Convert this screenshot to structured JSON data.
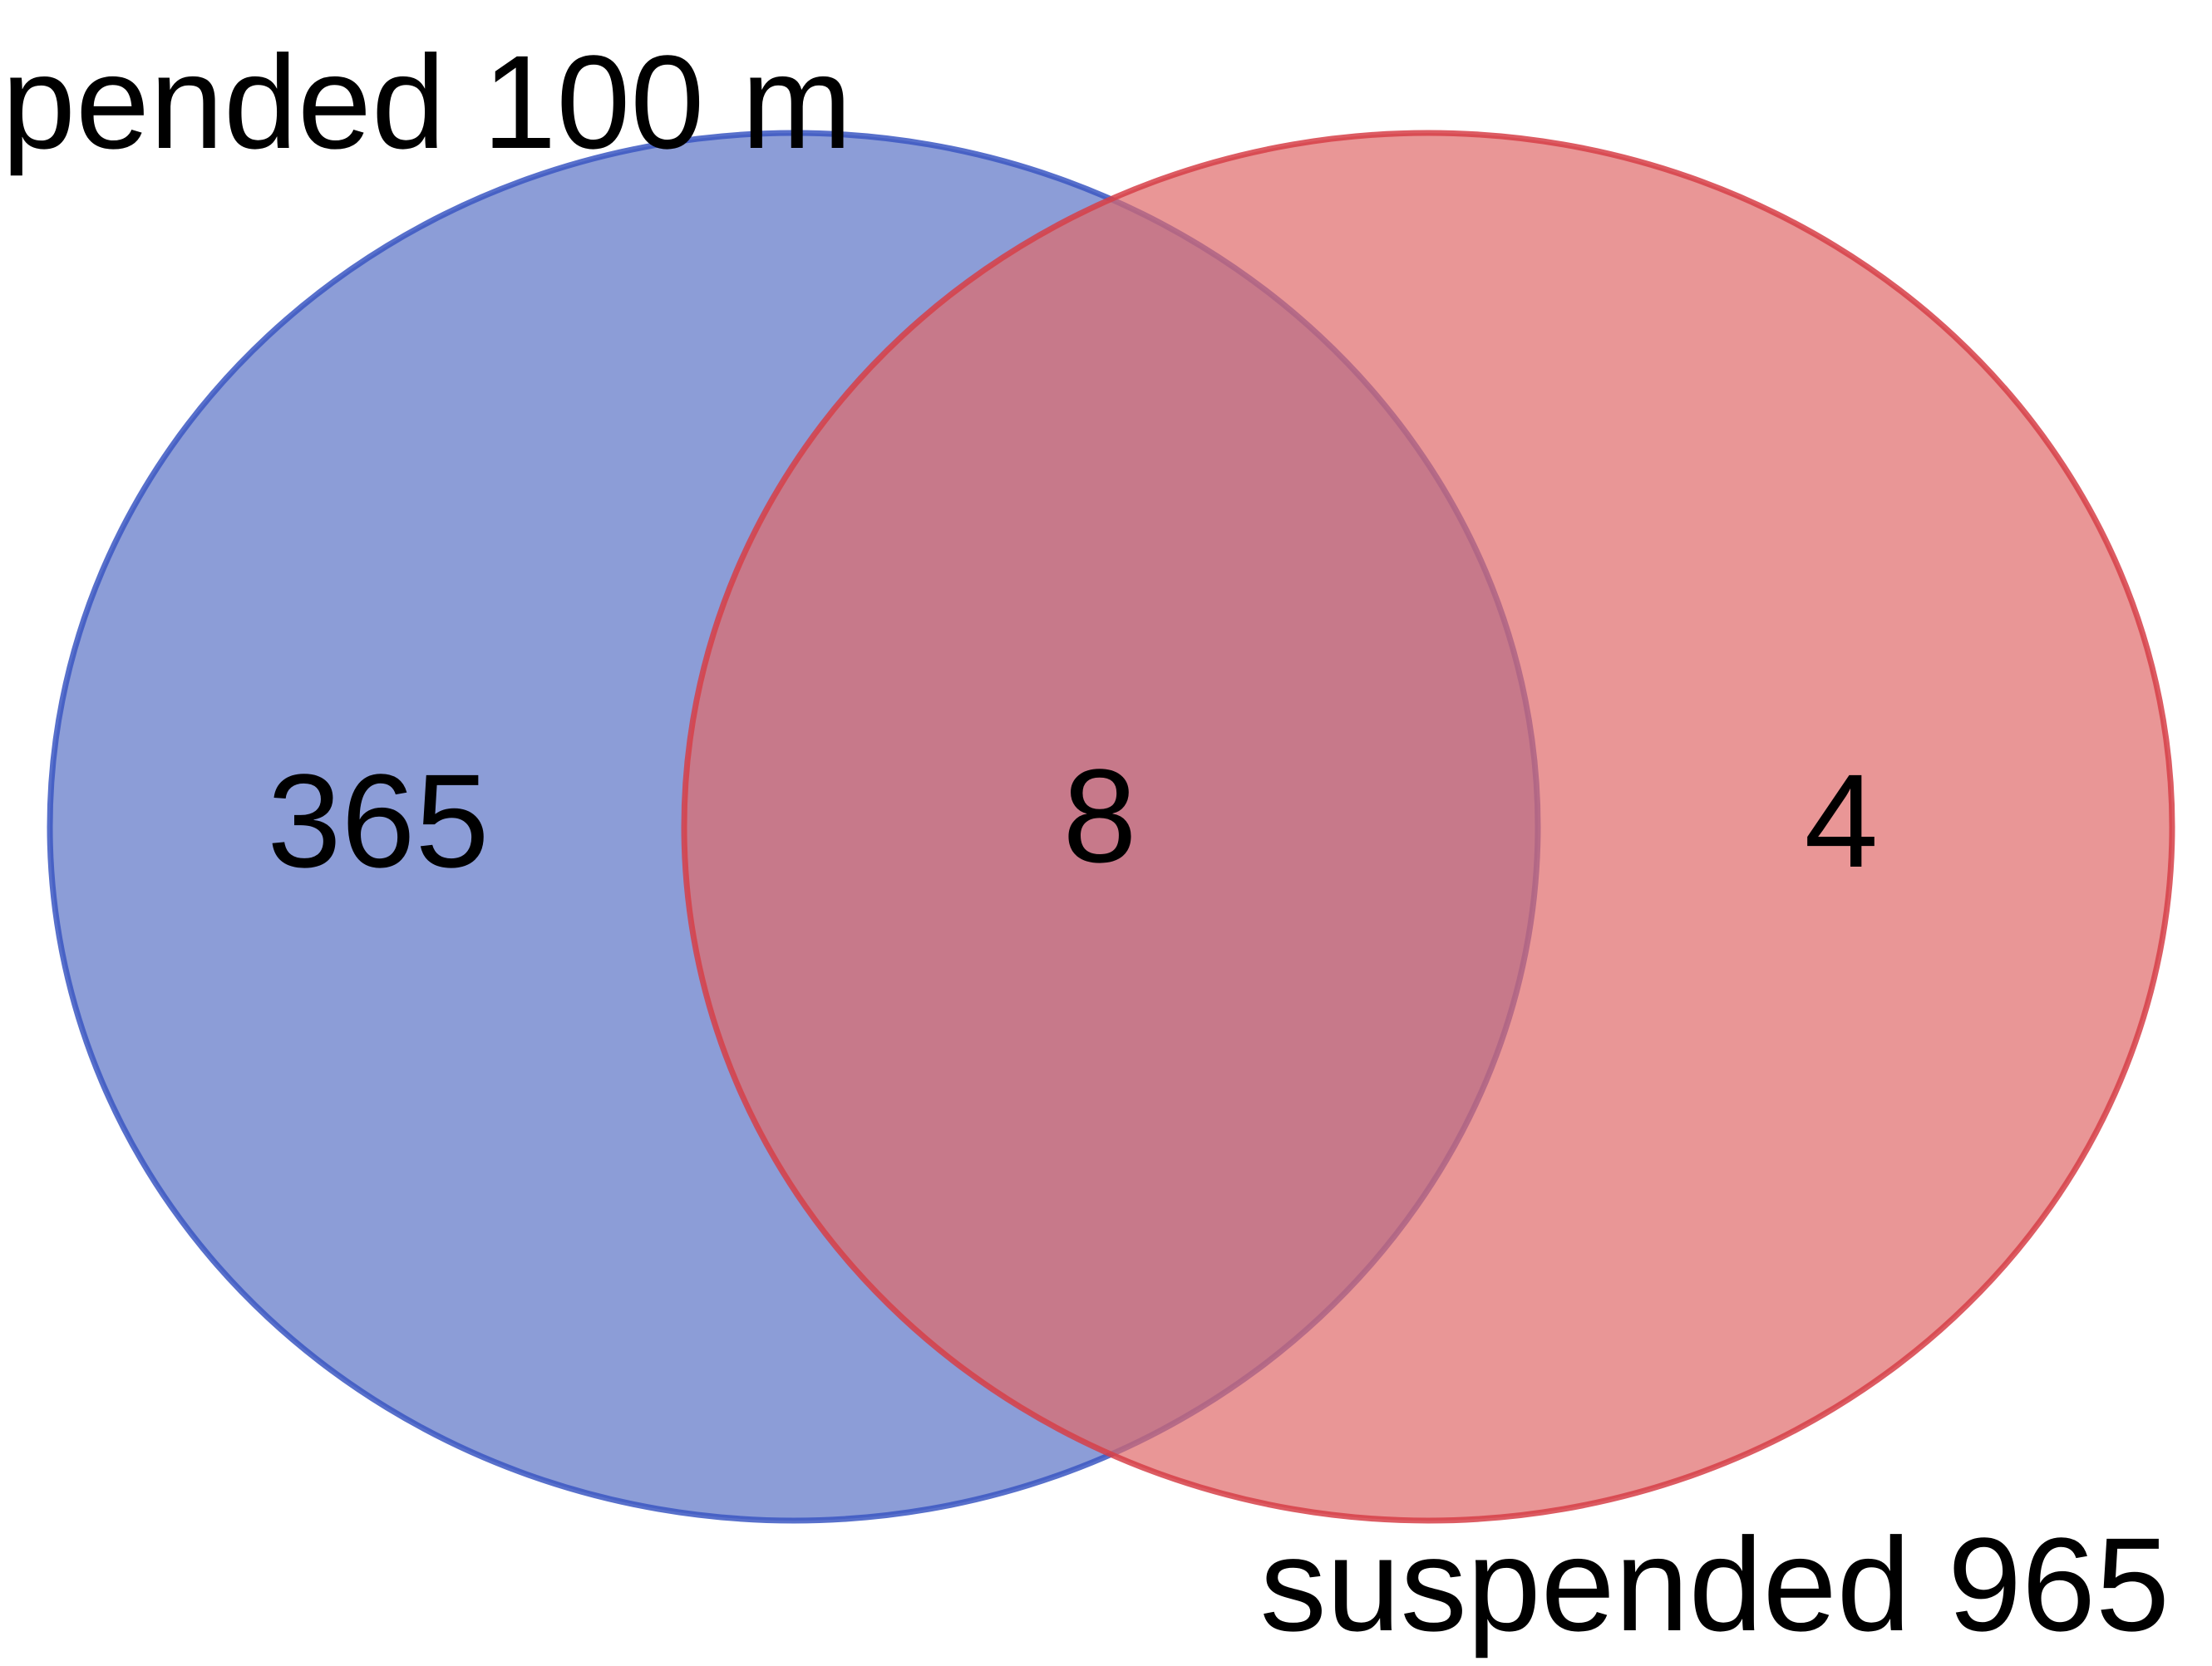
{
  "diagram": {
    "type": "venn",
    "sets": [
      {
        "label": "pended 100 m",
        "fill": "#5b74c6",
        "stroke": "#3b57c2"
      },
      {
        "label": "suspended 965",
        "fill": "#df6a6a",
        "stroke": "#d63f48"
      }
    ],
    "regions": {
      "only_first": "365",
      "overlap": "8",
      "only_second": "4"
    },
    "overlap_color": "#a95b76"
  }
}
